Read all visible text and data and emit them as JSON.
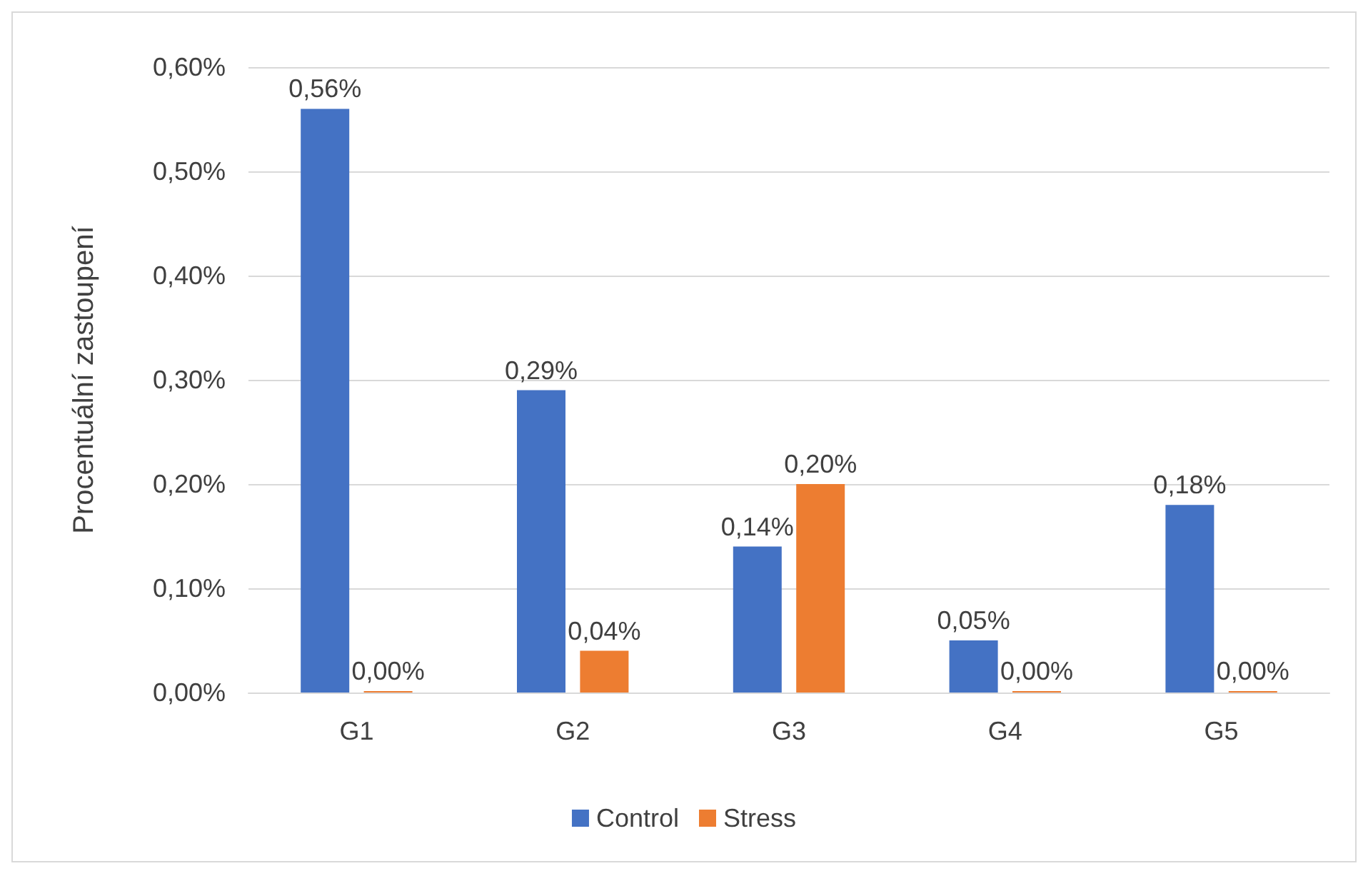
{
  "chart_data": {
    "type": "bar",
    "ylabel": "Procentuální zastoupení",
    "categories": [
      "G1",
      "G2",
      "G3",
      "G4",
      "G5"
    ],
    "series": [
      {
        "name": "Control",
        "color": "#4472c4",
        "values": [
          0.56,
          0.29,
          0.14,
          0.05,
          0.18
        ],
        "value_labels": [
          "0,56%",
          "0,29%",
          "0,14%",
          "0,05%",
          "0,18%"
        ]
      },
      {
        "name": "Stress",
        "color": "#ed7d31",
        "values": [
          0,
          0.04,
          0.2,
          0,
          0
        ],
        "value_labels": [
          "0,00%",
          "0,04%",
          "0,20%",
          "0,00%",
          "0,00%"
        ]
      }
    ],
    "ylim": [
      0,
      0.6
    ],
    "yticks": [
      {
        "value": 0,
        "label": "0,00%"
      },
      {
        "value": 0.1,
        "label": "0,10%"
      },
      {
        "value": 0.2,
        "label": "0,20%"
      },
      {
        "value": 0.3,
        "label": "0,30%"
      },
      {
        "value": 0.4,
        "label": "0,40%"
      },
      {
        "value": 0.5,
        "label": "0,50%"
      },
      {
        "value": 0.6,
        "label": "0,60%"
      }
    ],
    "grid": "y",
    "legend": "bottom"
  }
}
